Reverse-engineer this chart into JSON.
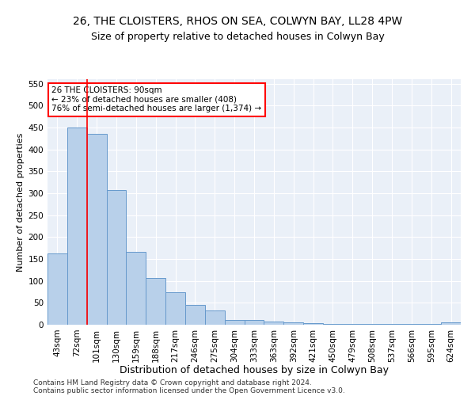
{
  "title1": "26, THE CLOISTERS, RHOS ON SEA, COLWYN BAY, LL28 4PW",
  "title2": "Size of property relative to detached houses in Colwyn Bay",
  "xlabel": "Distribution of detached houses by size in Colwyn Bay",
  "ylabel": "Number of detached properties",
  "categories": [
    "43sqm",
    "72sqm",
    "101sqm",
    "130sqm",
    "159sqm",
    "188sqm",
    "217sqm",
    "246sqm",
    "275sqm",
    "304sqm",
    "333sqm",
    "363sqm",
    "392sqm",
    "421sqm",
    "450sqm",
    "479sqm",
    "508sqm",
    "537sqm",
    "566sqm",
    "595sqm",
    "624sqm"
  ],
  "values": [
    163,
    450,
    435,
    307,
    167,
    106,
    74,
    45,
    33,
    11,
    11,
    8,
    5,
    3,
    2,
    2,
    2,
    1,
    1,
    1,
    5
  ],
  "bar_color": "#b8d0ea",
  "bar_edge_color": "#6699cc",
  "red_line_x": 1.5,
  "annotation_text": "26 THE CLOISTERS: 90sqm\n← 23% of detached houses are smaller (408)\n76% of semi-detached houses are larger (1,374) →",
  "annotation_box_color": "white",
  "annotation_box_edge_color": "red",
  "ylim": [
    0,
    560
  ],
  "yticks": [
    0,
    50,
    100,
    150,
    200,
    250,
    300,
    350,
    400,
    450,
    500,
    550
  ],
  "footer1": "Contains HM Land Registry data © Crown copyright and database right 2024.",
  "footer2": "Contains public sector information licensed under the Open Government Licence v3.0.",
  "title1_fontsize": 10,
  "title2_fontsize": 9,
  "xlabel_fontsize": 9,
  "ylabel_fontsize": 8,
  "tick_fontsize": 7.5,
  "annotation_fontsize": 7.5,
  "footer_fontsize": 6.5
}
